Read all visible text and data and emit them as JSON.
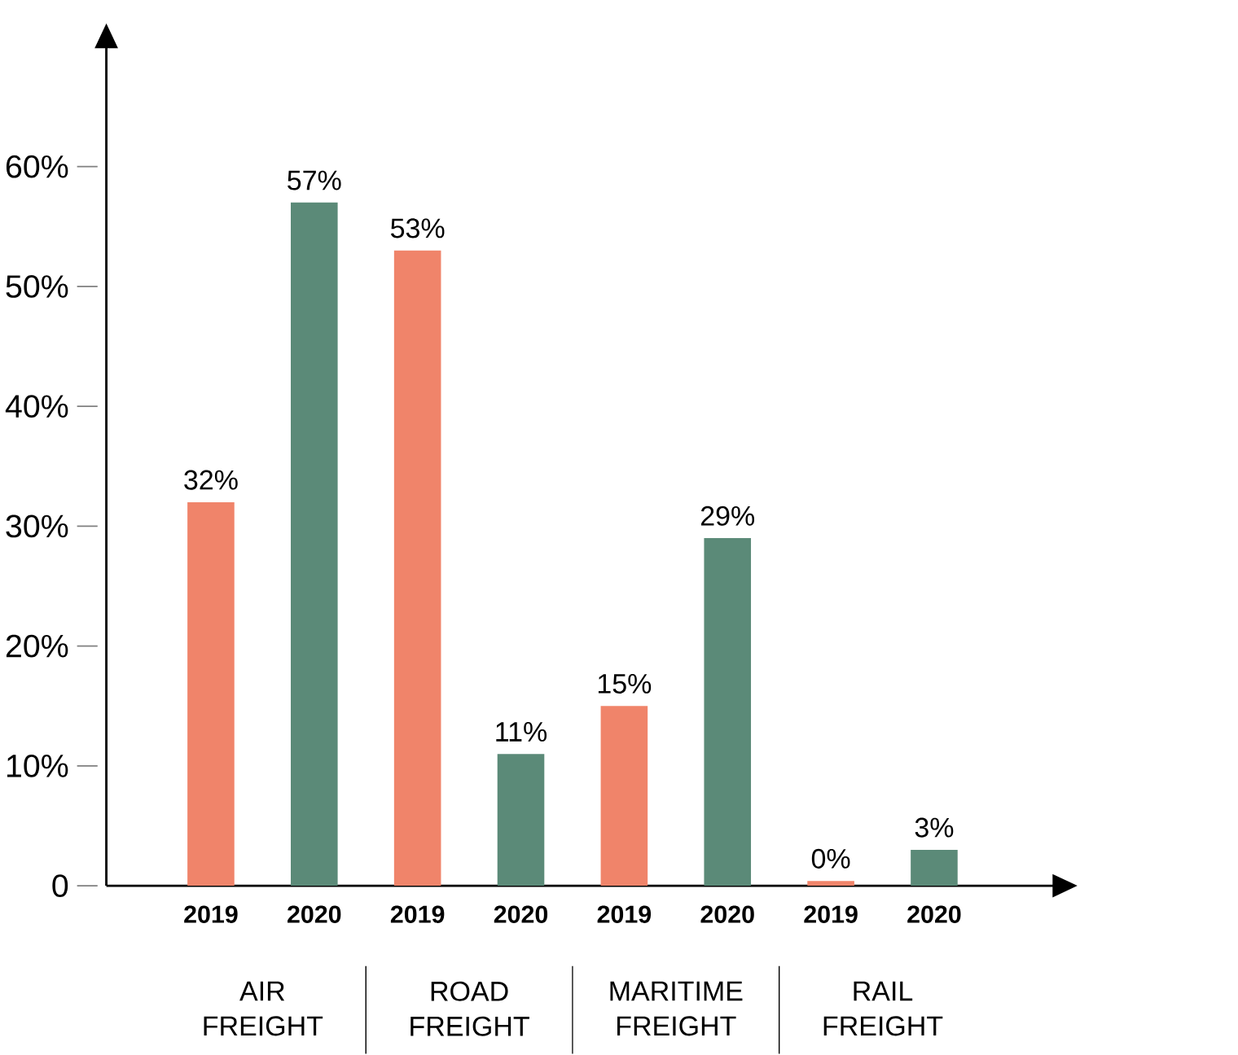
{
  "chart_data": {
    "type": "bar",
    "categories": [
      "AIR FREIGHT",
      "ROAD FREIGHT",
      "MARITIME FREIGHT",
      "RAIL FREIGHT"
    ],
    "series": [
      {
        "name": "2019",
        "color": "#f0846a",
        "values": [
          32,
          53,
          15,
          0.4
        ],
        "value_labels": [
          "32%",
          "53%",
          "15%",
          "0%"
        ]
      },
      {
        "name": "2020",
        "color": "#5b8a78",
        "values": [
          57,
          11,
          29,
          3
        ],
        "value_labels": [
          "57%",
          "11%",
          "29%",
          "3%"
        ]
      }
    ],
    "ylim": [
      0,
      70
    ],
    "yticks": [
      {
        "value": 0,
        "label": "0"
      },
      {
        "value": 10,
        "label": "10%"
      },
      {
        "value": 20,
        "label": "20%"
      },
      {
        "value": 30,
        "label": "30%"
      },
      {
        "value": 40,
        "label": "40%"
      },
      {
        "value": 50,
        "label": "50%"
      },
      {
        "value": 60,
        "label": "60%"
      }
    ]
  }
}
